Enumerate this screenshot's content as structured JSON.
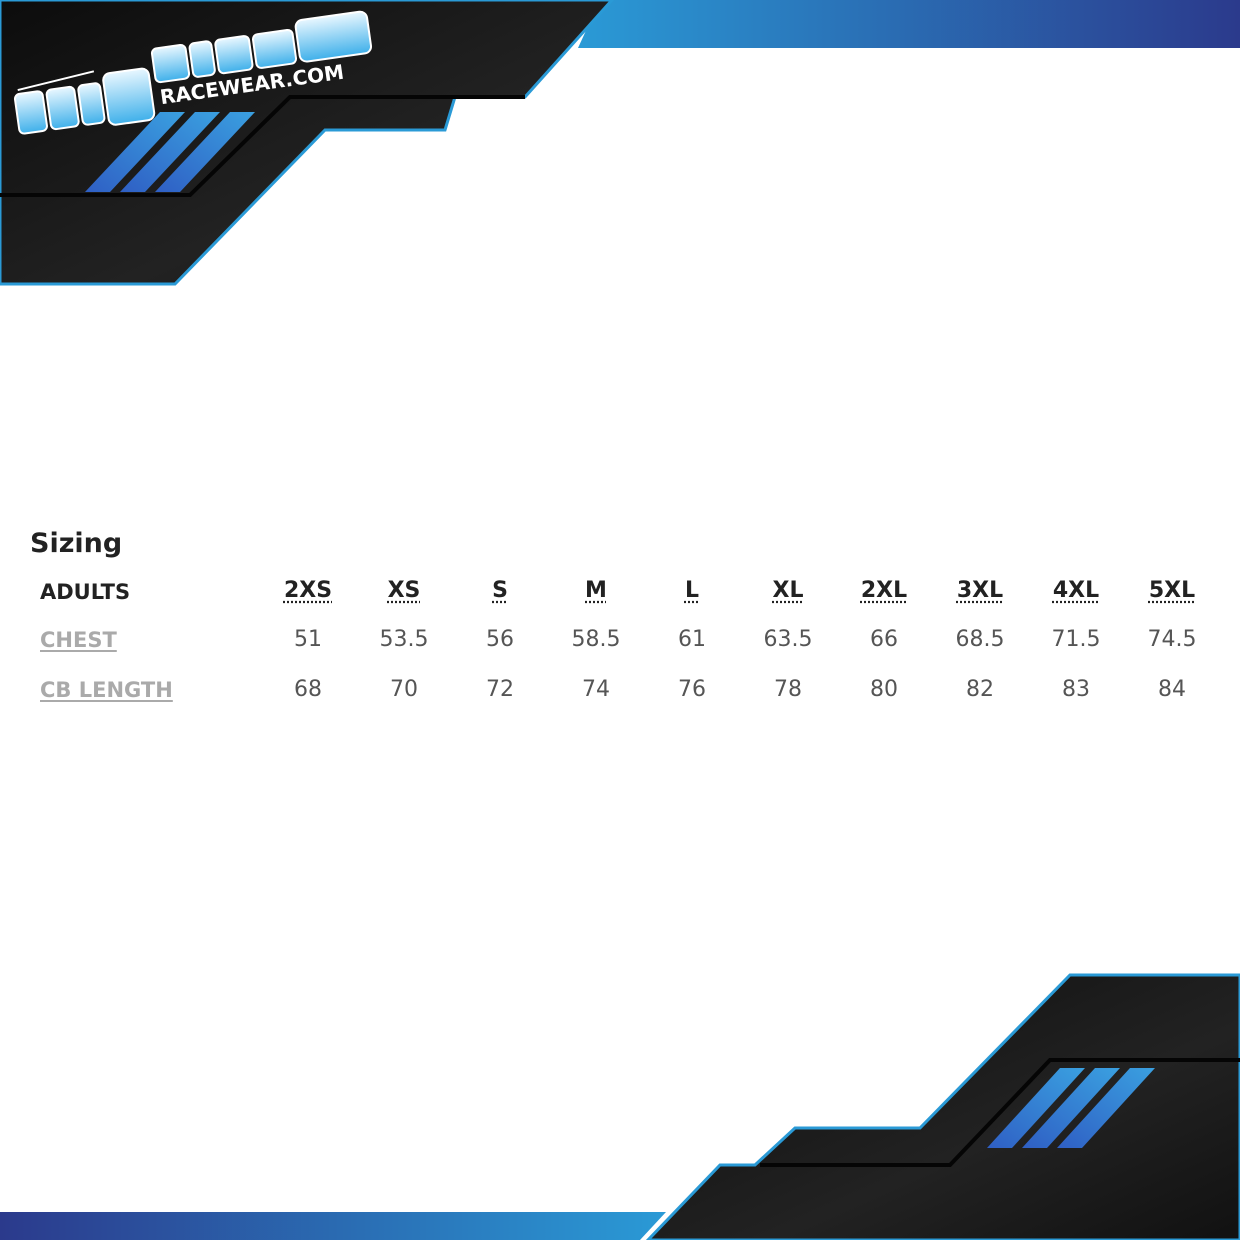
{
  "brand": {
    "logo_text": "RACEWEAR.COM",
    "colors": {
      "accent_light": "#2a9ad6",
      "accent_dark": "#2b3a8c",
      "panel": "#141414"
    }
  },
  "sizing": {
    "title": "Sizing",
    "group_label": "ADULTS",
    "sizes": [
      "2XS",
      "XS",
      "S",
      "M",
      "L",
      "XL",
      "2XL",
      "3XL",
      "4XL",
      "5XL"
    ],
    "rows": [
      {
        "label": "CHEST",
        "values": [
          "51",
          "53.5",
          "56",
          "58.5",
          "61",
          "63.5",
          "66",
          "68.5",
          "71.5",
          "74.5"
        ]
      },
      {
        "label": "CB LENGTH",
        "values": [
          "68",
          "70",
          "72",
          "74",
          "76",
          "78",
          "80",
          "82",
          "83",
          "84"
        ]
      }
    ]
  }
}
